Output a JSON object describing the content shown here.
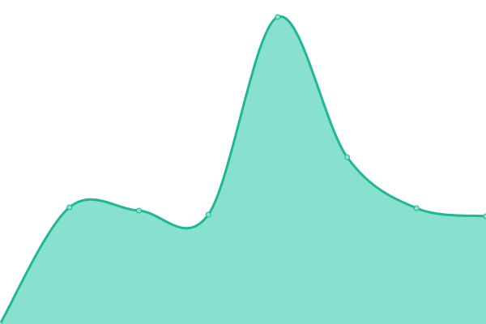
{
  "chart_data": {
    "type": "area",
    "categories": [
      null,
      null,
      null,
      null,
      null,
      null,
      null,
      null
    ],
    "values": [
      0,
      144,
      140,
      135,
      379,
      206,
      143,
      133
    ],
    "color": "#20b894",
    "fill": "#88e0cf",
    "ylim": [
      0,
      400
    ]
  }
}
